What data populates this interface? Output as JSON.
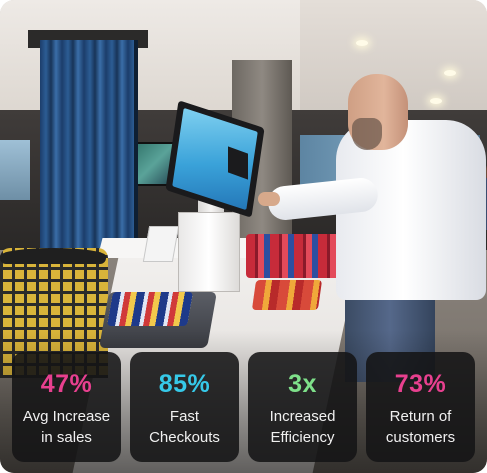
{
  "stats": [
    {
      "value": "47%",
      "label_line1": "Avg Increase",
      "label_line2": "in sales",
      "color": "#e8408f"
    },
    {
      "value": "85%",
      "label_line1": "Fast",
      "label_line2": "Checkouts",
      "color": "#36c9e8"
    },
    {
      "value": "3x",
      "label_line1": "Increased",
      "label_line2": "Efficiency",
      "color": "#7ee08a"
    },
    {
      "value": "73%",
      "label_line1": "Return of",
      "label_line2": "customers",
      "color": "#e8408f"
    }
  ]
}
